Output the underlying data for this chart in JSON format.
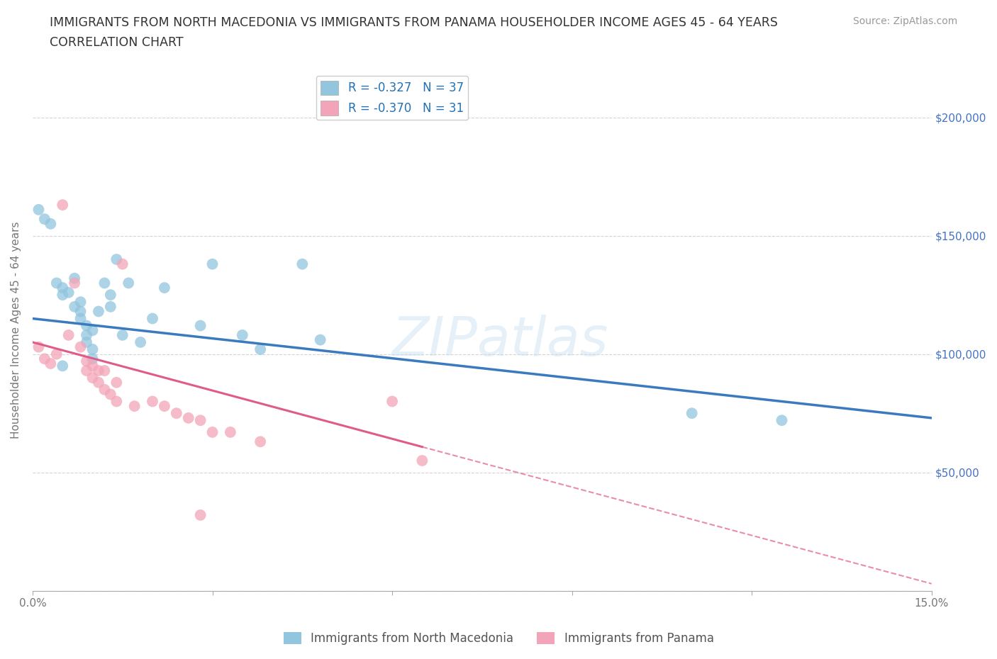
{
  "title_line1": "IMMIGRANTS FROM NORTH MACEDONIA VS IMMIGRANTS FROM PANAMA HOUSEHOLDER INCOME AGES 45 - 64 YEARS",
  "title_line2": "CORRELATION CHART",
  "source_text": "Source: ZipAtlas.com",
  "ylabel": "Householder Income Ages 45 - 64 years",
  "xlim": [
    0.0,
    0.15
  ],
  "ylim": [
    0,
    220000
  ],
  "yticks": [
    0,
    50000,
    100000,
    150000,
    200000
  ],
  "xticks": [
    0.0,
    0.03,
    0.06,
    0.09,
    0.12,
    0.15
  ],
  "xtick_labels": [
    "0.0%",
    "",
    "",
    "",
    "",
    "15.0%"
  ],
  "watermark_text": "ZIPatlas",
  "legend_label1": "Immigrants from North Macedonia",
  "legend_label2": "Immigrants from Panama",
  "R1": -0.327,
  "N1": 37,
  "R2": -0.37,
  "N2": 31,
  "color1": "#92c5de",
  "color2": "#f4a4b8",
  "color1_line": "#3a7abf",
  "color2_line": "#e05b8a",
  "scatter1_x": [
    0.001,
    0.002,
    0.003,
    0.004,
    0.005,
    0.005,
    0.006,
    0.007,
    0.007,
    0.008,
    0.008,
    0.008,
    0.009,
    0.009,
    0.009,
    0.01,
    0.01,
    0.011,
    0.012,
    0.013,
    0.013,
    0.014,
    0.015,
    0.016,
    0.018,
    0.02,
    0.022,
    0.028,
    0.03,
    0.035,
    0.038,
    0.045,
    0.048,
    0.11,
    0.125,
    0.005,
    0.01
  ],
  "scatter1_y": [
    161000,
    157000,
    155000,
    130000,
    128000,
    125000,
    126000,
    132000,
    120000,
    118000,
    122000,
    115000,
    112000,
    108000,
    105000,
    110000,
    102000,
    118000,
    130000,
    125000,
    120000,
    140000,
    108000,
    130000,
    105000,
    115000,
    128000,
    112000,
    138000,
    108000,
    102000,
    138000,
    106000,
    75000,
    72000,
    95000,
    98000
  ],
  "scatter2_x": [
    0.001,
    0.002,
    0.003,
    0.004,
    0.005,
    0.006,
    0.007,
    0.008,
    0.009,
    0.009,
    0.01,
    0.01,
    0.011,
    0.011,
    0.012,
    0.012,
    0.013,
    0.014,
    0.014,
    0.015,
    0.017,
    0.02,
    0.022,
    0.024,
    0.026,
    0.028,
    0.03,
    0.033,
    0.038,
    0.06,
    0.065
  ],
  "scatter2_y": [
    103000,
    98000,
    96000,
    100000,
    163000,
    108000,
    130000,
    103000,
    97000,
    93000,
    95000,
    90000,
    93000,
    88000,
    93000,
    85000,
    83000,
    88000,
    80000,
    138000,
    78000,
    80000,
    78000,
    75000,
    73000,
    72000,
    67000,
    67000,
    63000,
    80000,
    55000
  ],
  "scatter2_low_x": [
    0.028
  ],
  "scatter2_low_y": [
    32000
  ],
  "line1_intercept": 115000,
  "line1_slope": -280000,
  "line2_intercept": 105000,
  "line2_slope": -680000,
  "line2_solid_end": 0.065,
  "line2_dash_end": 0.15,
  "grid_color": "#d0d0d0",
  "bg_color": "#ffffff",
  "title_color": "#333333",
  "tick_color": "#777777",
  "right_tick_color": "#4472C4",
  "legend_text_color": "#2171b5"
}
